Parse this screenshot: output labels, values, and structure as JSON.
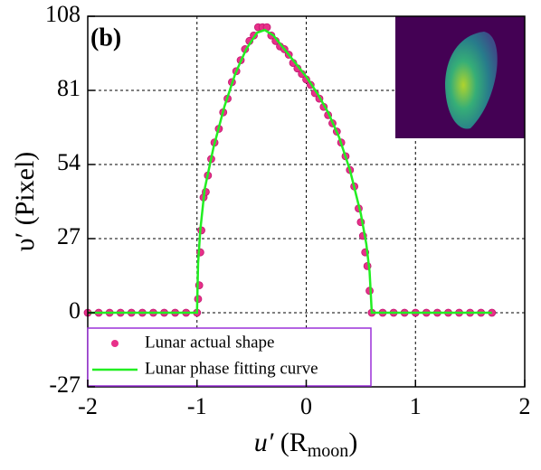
{
  "chart_data": {
    "type": "scatter",
    "annotation": "(b)",
    "xlabel": [
      "u′",
      " (R",
      "moon",
      ")"
    ],
    "ylabel": "υ′ (Pixel)",
    "xlim": [
      -2,
      2
    ],
    "xticks": [
      -2,
      -1,
      0,
      1,
      2
    ],
    "ylim": [
      -27,
      108
    ],
    "yticks": [
      -27,
      0,
      27,
      54,
      81,
      108
    ],
    "grid": true,
    "legend": "lower left",
    "series": [
      {
        "name": "Lunar actual shape",
        "type": "scatter",
        "color": "#e8308a",
        "x": [
          -2,
          -1.9,
          -1.8,
          -1.7,
          -1.6,
          -1.5,
          -1.4,
          -1.3,
          -1.2,
          -1.1,
          -1.0,
          -0.99,
          -0.98,
          -0.97,
          -0.96,
          -0.94,
          -0.92,
          -0.9,
          -0.87,
          -0.84,
          -0.8,
          -0.76,
          -0.72,
          -0.68,
          -0.64,
          -0.6,
          -0.56,
          -0.52,
          -0.48,
          -0.44,
          -0.4,
          -0.36,
          -0.32,
          -0.28,
          -0.24,
          -0.2,
          -0.16,
          -0.12,
          -0.08,
          -0.04,
          0,
          0.04,
          0.08,
          0.12,
          0.16,
          0.2,
          0.24,
          0.28,
          0.32,
          0.36,
          0.4,
          0.44,
          0.48,
          0.5,
          0.52,
          0.54,
          0.56,
          0.58,
          0.6,
          0.7,
          0.8,
          0.9,
          1.0,
          1.1,
          1.2,
          1.3,
          1.4,
          1.5,
          1.6,
          1.7
        ],
        "values": [
          0,
          0,
          0,
          0,
          0,
          0,
          0,
          0,
          0,
          0,
          0,
          5,
          10,
          22,
          30,
          42,
          44,
          50,
          56,
          62,
          67,
          73,
          78,
          84,
          88,
          92,
          96,
          99,
          101,
          104,
          104,
          104,
          101,
          99,
          97,
          96,
          94,
          91,
          89,
          87,
          85,
          83,
          80,
          78,
          75,
          72,
          69,
          66,
          62,
          57,
          52,
          46,
          38,
          33,
          28,
          22,
          17,
          8,
          0,
          0,
          0,
          0,
          0,
          0,
          0,
          0,
          0,
          0,
          0,
          0
        ]
      },
      {
        "name": "Lunar phase fitting curve",
        "type": "line",
        "color": "#22ee22",
        "x": [
          -2,
          -1,
          -0.99,
          -0.97,
          -0.93,
          -0.85,
          -0.75,
          -0.65,
          -0.55,
          -0.45,
          -0.38,
          -0.3,
          -0.2,
          -0.1,
          0,
          0.1,
          0.2,
          0.3,
          0.4,
          0.5,
          0.55,
          0.58,
          0.6,
          1.7
        ],
        "values": [
          0,
          0,
          18,
          30,
          45,
          60,
          75,
          87,
          96,
          102,
          103,
          101,
          96,
          91,
          86,
          80,
          73,
          64,
          52,
          36,
          25,
          15,
          0,
          0
        ]
      }
    ]
  }
}
